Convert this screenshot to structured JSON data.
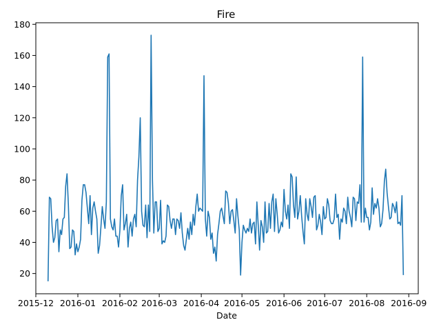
{
  "chart_data": {
    "type": "line",
    "title": "Fire",
    "xlabel": "Date",
    "ylabel": "",
    "x_range": [
      "2015-12-01",
      "2016-09-08"
    ],
    "ylim": [
      7,
      181
    ],
    "grid": false,
    "legend": "none",
    "line_color": "#1f77b4",
    "x_ticks": [
      {
        "date": "2015-12-01",
        "label": "2015-12"
      },
      {
        "date": "2016-01-01",
        "label": "2016-01"
      },
      {
        "date": "2016-02-01",
        "label": "2016-02"
      },
      {
        "date": "2016-03-01",
        "label": "2016-03"
      },
      {
        "date": "2016-04-01",
        "label": "2016-04"
      },
      {
        "date": "2016-05-01",
        "label": "2016-05"
      },
      {
        "date": "2016-06-01",
        "label": "2016-06"
      },
      {
        "date": "2016-07-01",
        "label": "2016-07"
      },
      {
        "date": "2016-08-01",
        "label": "2016-08"
      },
      {
        "date": "2016-09-01",
        "label": "2016-09"
      }
    ],
    "y_ticks": [
      20,
      40,
      60,
      80,
      100,
      120,
      140,
      160,
      180
    ],
    "series": [
      {
        "start_date": "2015-12-10",
        "step_days": 1,
        "values": [
          15,
          69,
          68,
          50,
          40,
          43,
          54,
          55,
          34,
          48,
          45,
          55,
          56,
          76,
          84,
          64,
          36,
          37,
          48,
          47,
          32,
          39,
          34,
          37,
          42,
          67,
          77,
          77,
          72,
          62,
          52,
          70,
          45,
          62,
          66,
          60,
          55,
          33,
          38,
          50,
          63,
          55,
          49,
          66,
          159,
          161,
          55,
          50,
          48,
          55,
          44,
          44,
          37,
          48,
          70,
          77,
          48,
          52,
          58,
          37,
          49,
          53,
          44,
          55,
          58,
          50,
          80,
          95,
          120,
          60,
          51,
          50,
          64,
          43,
          64,
          47,
          173,
          80,
          46,
          66,
          66,
          47,
          49,
          67,
          39,
          41,
          40,
          44,
          64,
          63,
          54,
          49,
          55,
          55,
          45,
          55,
          54,
          49,
          59,
          46,
          38,
          35,
          42,
          49,
          42,
          53,
          45,
          58,
          51,
          63,
          71,
          60,
          62,
          61,
          60,
          147,
          55,
          44,
          60,
          56,
          42,
          46,
          33,
          37,
          28,
          45,
          52,
          60,
          62,
          57,
          52,
          73,
          72,
          65,
          52,
          60,
          61,
          54,
          46,
          68,
          57,
          48,
          19,
          40,
          51,
          48,
          46,
          49,
          47,
          55,
          46,
          52,
          53,
          39,
          66,
          51,
          35,
          54,
          50,
          40,
          66,
          46,
          47,
          65,
          49,
          66,
          71,
          47,
          68,
          58,
          46,
          48,
          53,
          50,
          74,
          60,
          55,
          64,
          49,
          84,
          82,
          64,
          56,
          82,
          55,
          60,
          70,
          57,
          47,
          39,
          68,
          58,
          54,
          68,
          63,
          56,
          69,
          70,
          48,
          51,
          58,
          53,
          45,
          63,
          55,
          56,
          68,
          64,
          54,
          52,
          52,
          55,
          71,
          56,
          58,
          42,
          55,
          53,
          62,
          60,
          52,
          69,
          60,
          56,
          50,
          69,
          68,
          54,
          66,
          65,
          77,
          53,
          159,
          53,
          62,
          56,
          56,
          48,
          53,
          75,
          58,
          65,
          62,
          68,
          62,
          50,
          52,
          61,
          79,
          87,
          72,
          63,
          55,
          56,
          65,
          63,
          59,
          66,
          52,
          53,
          51,
          70,
          19
        ]
      }
    ]
  }
}
